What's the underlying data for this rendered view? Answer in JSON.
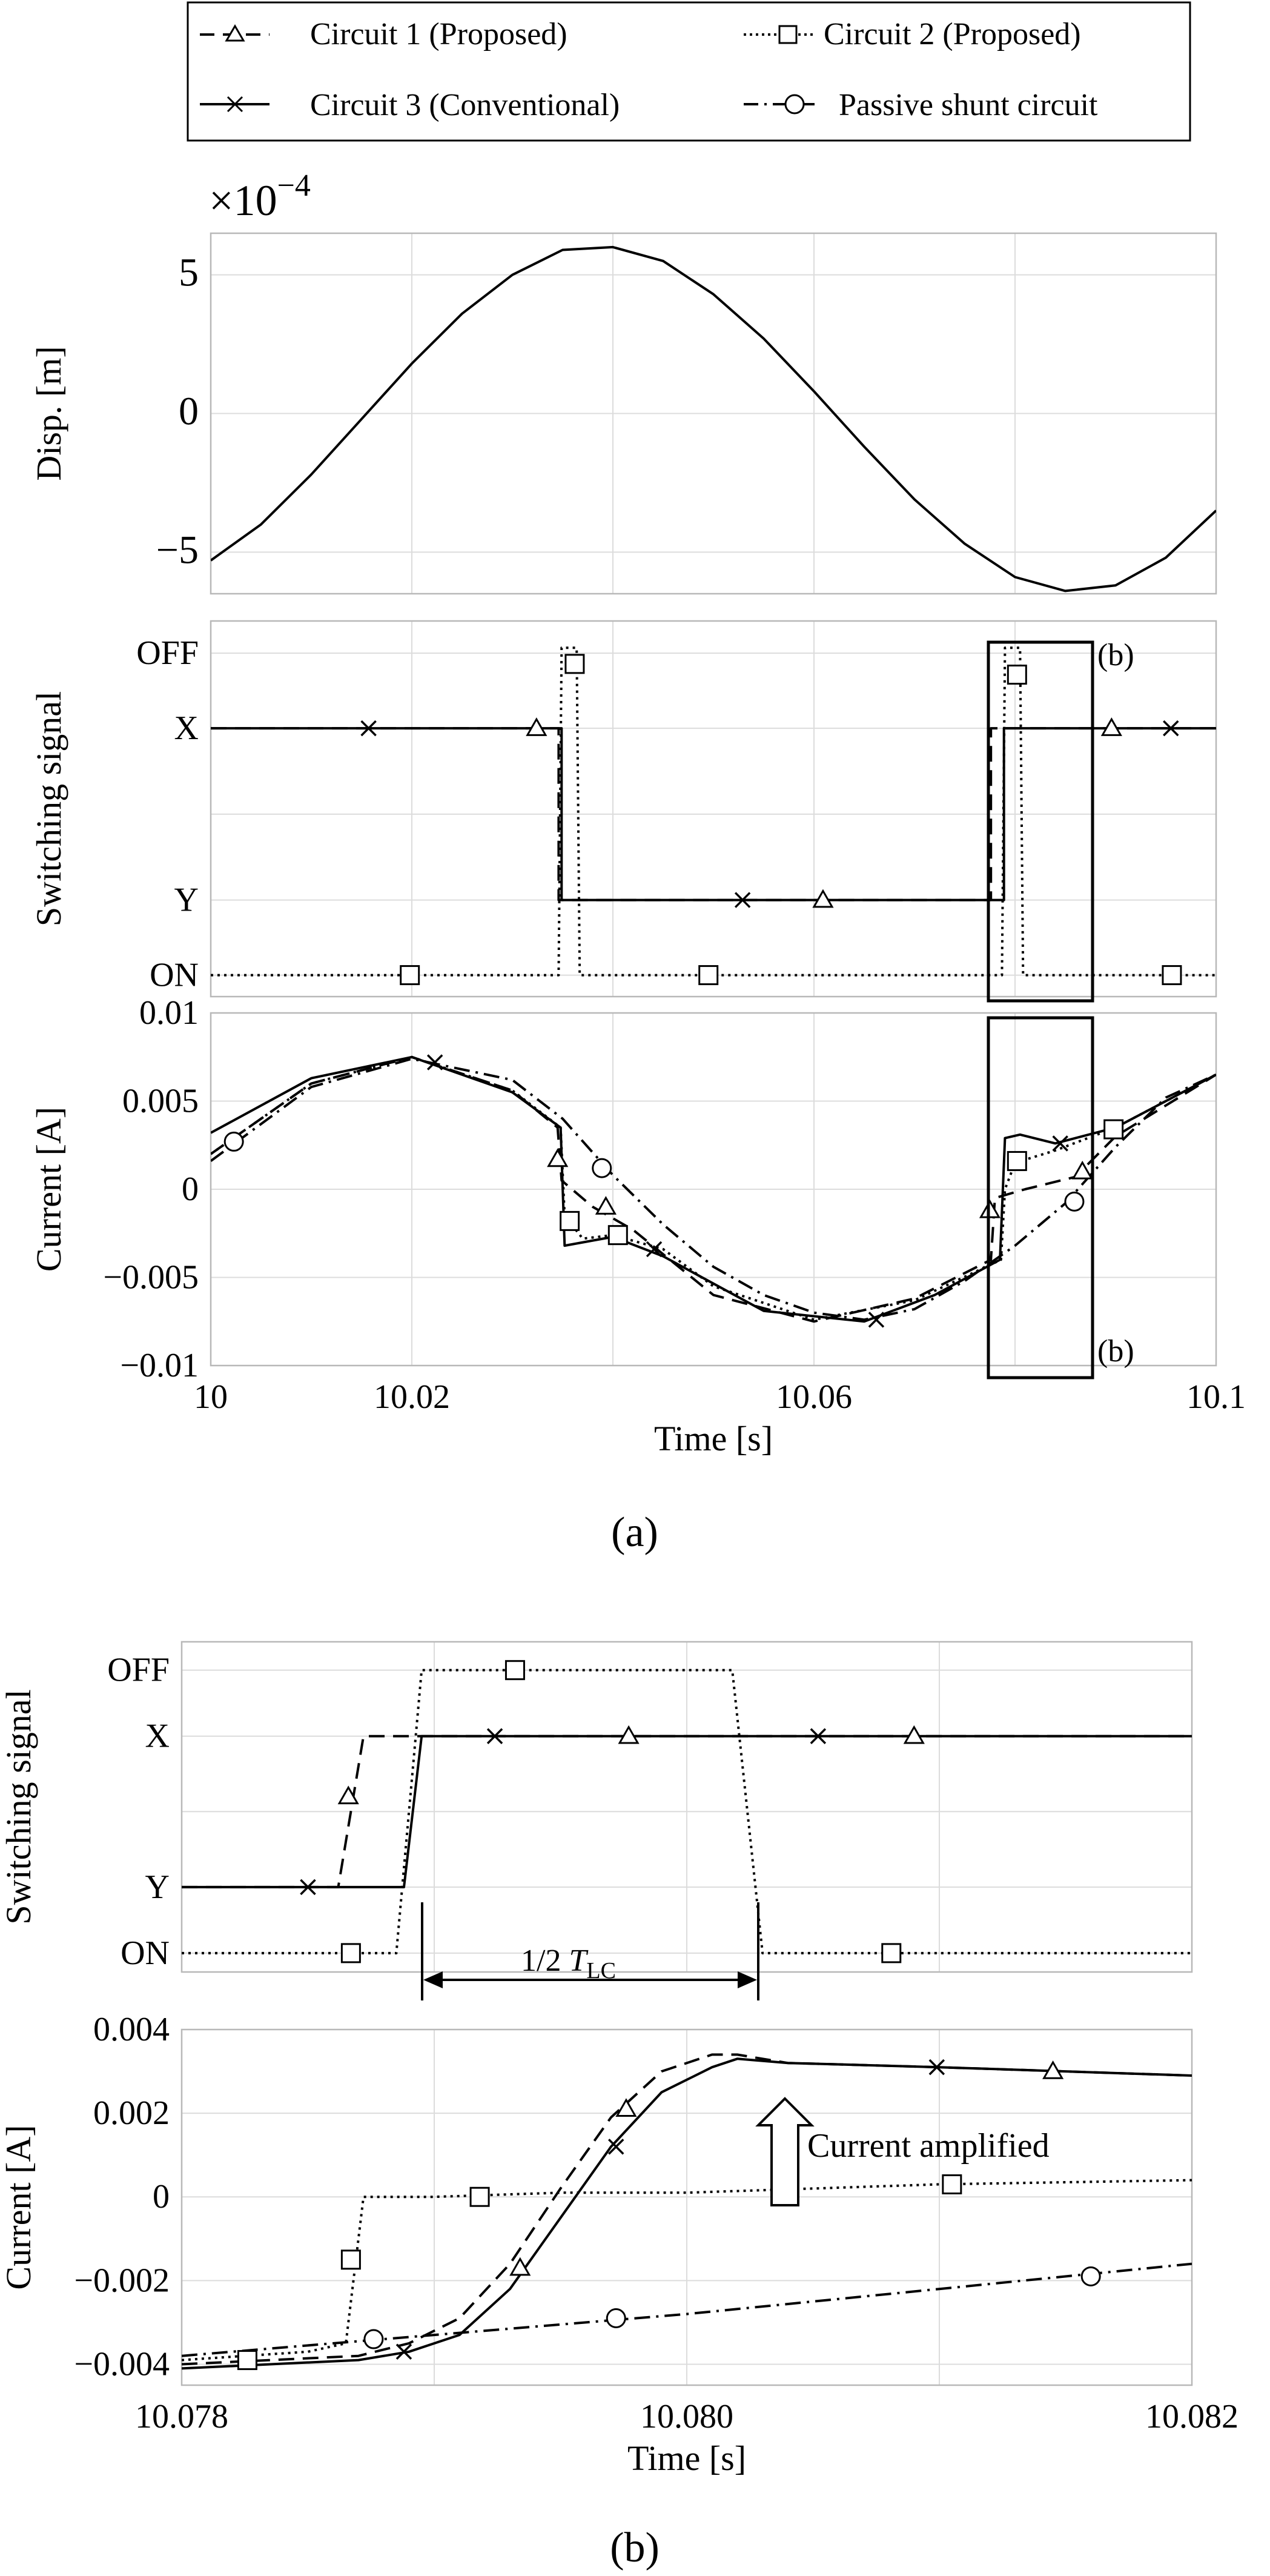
{
  "legend": {
    "entries": [
      {
        "label": "Circuit 1 (Proposed)",
        "line": "dashed",
        "marker": "triangle"
      },
      {
        "label": "Circuit 2 (Proposed)",
        "line": "dotted",
        "marker": "square"
      },
      {
        "label": "Circuit 3 (Conventional)",
        "line": "solid",
        "marker": "x"
      },
      {
        "label": "Passive shunt circuit",
        "line": "dashdot",
        "marker": "circle"
      }
    ]
  },
  "captions": {
    "a": "(a)",
    "b": "(b)"
  },
  "annotations": {
    "box_label": "(b)",
    "half_period_prefix": "1/2 ",
    "half_period_symbol": "T",
    "half_period_subscript": "LC",
    "current_amplified": "Current amplified"
  },
  "chart_data": [
    {
      "id": "a_disp",
      "type": "line",
      "ylabel": "Disp. [m]",
      "exponent_prefix": "×10",
      "exponent": "−4",
      "xlim": [
        10.0,
        10.1
      ],
      "ylim": [
        -6.5,
        6.5
      ],
      "yticks": [
        -5,
        0,
        5
      ],
      "ytick_labels": [
        "−5",
        "0",
        "5"
      ],
      "series": [
        {
          "style": "solid",
          "x": [
            10.0,
            10.005,
            10.01,
            10.015,
            10.02,
            10.025,
            10.03,
            10.035,
            10.04,
            10.045,
            10.05,
            10.055,
            10.06,
            10.065,
            10.07,
            10.075,
            10.08,
            10.085,
            10.09,
            10.095,
            10.1
          ],
          "y": [
            -5.3,
            -4.0,
            -2.2,
            -0.2,
            1.8,
            3.6,
            5.0,
            5.9,
            6.0,
            5.5,
            4.3,
            2.7,
            0.8,
            -1.2,
            -3.1,
            -4.7,
            -5.9,
            -6.4,
            -6.2,
            -5.2,
            -3.5
          ]
        }
      ]
    },
    {
      "id": "a_switch",
      "type": "line",
      "ylabel": "Switching signal",
      "xlim": [
        10.0,
        10.1
      ],
      "ylim": [
        -0.2,
        3.3
      ],
      "yticks": [
        0,
        0.7,
        1.5,
        2.3,
        3.0
      ],
      "ytick_labels": [
        "ON",
        "Y",
        "",
        "X",
        "OFF"
      ],
      "series": [
        {
          "name": "Circuit 1 (Proposed)",
          "style": "dashed",
          "x": [
            10.0,
            10.0346,
            10.0346,
            10.0776,
            10.0776,
            10.1
          ],
          "y": [
            2.3,
            2.3,
            0.7,
            0.7,
            2.3,
            2.3
          ],
          "markers": [
            [
              10.0324,
              2.3
            ],
            [
              10.0609,
              0.7
            ],
            [
              10.0896,
              2.3
            ]
          ]
        },
        {
          "name": "Circuit 2 (Proposed)",
          "style": "dotted",
          "x": [
            10.0,
            10.0346,
            10.0349,
            10.0364,
            10.0367,
            10.0787,
            10.079,
            10.0805,
            10.0808,
            10.1
          ],
          "y": [
            0,
            0,
            3.05,
            3.05,
            0,
            0,
            3.05,
            3.05,
            0,
            0
          ],
          "markers": [
            [
              10.0362,
              2.9
            ],
            [
              10.0198,
              0
            ],
            [
              10.0495,
              0
            ],
            [
              10.0802,
              2.8
            ],
            [
              10.0956,
              0
            ]
          ]
        },
        {
          "name": "Circuit 3 (Conventional)",
          "style": "solid",
          "x": [
            10.0,
            10.0349,
            10.0349,
            10.0789,
            10.0789,
            10.1
          ],
          "y": [
            2.3,
            2.3,
            0.7,
            0.7,
            2.3,
            2.3
          ],
          "markers": [
            [
              10.0157,
              2.3
            ],
            [
              10.0529,
              0.7
            ],
            [
              10.0955,
              2.3
            ]
          ]
        }
      ]
    },
    {
      "id": "a_current",
      "type": "line",
      "xlabel": "Time [s]",
      "ylabel": "Current [A]",
      "xlim": [
        10.0,
        10.1
      ],
      "ylim": [
        -0.01,
        0.01
      ],
      "xticks": [
        10.0,
        10.02,
        10.06,
        10.1
      ],
      "xtick_labels": [
        "10",
        "10.02",
        "10.06",
        "10.1"
      ],
      "yticks": [
        -0.01,
        -0.005,
        0,
        0.005,
        0.01
      ],
      "ytick_labels": [
        "−0.01",
        "−0.005",
        "0",
        "0.005",
        "0.01"
      ],
      "series": [
        {
          "name": "Circuit 3 (Conventional)",
          "style": "solid",
          "x": [
            10.0,
            10.01,
            10.02,
            10.03,
            10.0348,
            10.0352,
            10.04,
            10.045,
            10.055,
            10.065,
            10.072,
            10.0785,
            10.079,
            10.0805,
            10.084,
            10.09,
            10.1
          ],
          "y": [
            0.0032,
            0.0063,
            0.0075,
            0.0055,
            0.0035,
            -0.0032,
            -0.0027,
            -0.0038,
            -0.0069,
            -0.0075,
            -0.006,
            -0.004,
            0.0029,
            0.0031,
            0.0026,
            0.0035,
            0.0065
          ],
          "markers": [
            [
              10.0223,
              0.0072
            ],
            [
              10.0441,
              -0.0034
            ],
            [
              10.0662,
              -0.0074
            ],
            [
              10.0845,
              0.0026
            ]
          ]
        },
        {
          "name": "Circuit 1 (Proposed)",
          "style": "dashed",
          "x": [
            10.0,
            10.01,
            10.02,
            10.03,
            10.0345,
            10.0349,
            10.038,
            10.042,
            10.05,
            10.06,
            10.07,
            10.0776,
            10.078,
            10.081,
            10.086,
            10.09,
            10.1
          ],
          "y": [
            0.002,
            0.006,
            0.0075,
            0.0056,
            0.0035,
            0.0005,
            -0.001,
            -0.0023,
            -0.006,
            -0.0075,
            -0.0062,
            -0.004,
            -0.0005,
            0.0,
            0.0007,
            0.003,
            0.0065
          ],
          "markers": [
            [
              10.0345,
              0.0017
            ],
            [
              10.0393,
              -0.001
            ],
            [
              10.0775,
              -0.0012
            ],
            [
              10.0867,
              0.001
            ]
          ]
        },
        {
          "name": "Circuit 2 (Proposed)",
          "style": "dotted",
          "x": [
            10.0,
            10.01,
            10.02,
            10.03,
            10.0348,
            10.0352,
            10.037,
            10.04,
            10.045,
            10.05,
            10.06,
            10.07,
            10.0786,
            10.079,
            10.08,
            10.084,
            10.09,
            10.1
          ],
          "y": [
            0.002,
            0.006,
            0.0075,
            0.0056,
            0.0035,
            -0.0015,
            -0.0028,
            -0.0026,
            -0.0034,
            -0.0055,
            -0.0074,
            -0.0063,
            -0.004,
            0.0,
            0.0015,
            0.0022,
            0.0035,
            0.0065
          ],
          "markers": [
            [
              10.0357,
              -0.0018
            ],
            [
              10.0405,
              -0.0026
            ],
            [
              10.0802,
              0.0016
            ],
            [
              10.0898,
              0.0034
            ]
          ]
        },
        {
          "name": "Passive shunt circuit",
          "style": "dashdot",
          "x": [
            10.0,
            10.01,
            10.02,
            10.03,
            10.035,
            10.04,
            10.045,
            10.05,
            10.055,
            10.06,
            10.065,
            10.07,
            10.075,
            10.08,
            10.085,
            10.09,
            10.095,
            10.1
          ],
          "y": [
            0.0016,
            0.0058,
            0.0074,
            0.0062,
            0.004,
            0.0008,
            -0.002,
            -0.0044,
            -0.006,
            -0.007,
            -0.0074,
            -0.0068,
            -0.0052,
            -0.0032,
            -0.0008,
            0.0024,
            0.0052,
            0.0065
          ],
          "markers": [
            [
              10.0023,
              0.0027
            ],
            [
              10.0389,
              0.0012
            ],
            [
              10.0859,
              -0.0007
            ]
          ]
        }
      ]
    },
    {
      "id": "b_switch",
      "type": "line",
      "ylabel": "Switching signal",
      "xlim": [
        10.078,
        10.082
      ],
      "ylim": [
        -0.2,
        3.3
      ],
      "yticks": [
        0,
        0.7,
        1.5,
        2.3,
        3.0
      ],
      "ytick_labels": [
        "ON",
        "Y",
        "",
        "X",
        "OFF"
      ],
      "series": [
        {
          "name": "Circuit 1 (Proposed)",
          "style": "dashed",
          "x": [
            10.078,
            10.07862,
            10.07872,
            10.082
          ],
          "y": [
            0.7,
            0.7,
            2.3,
            2.3
          ],
          "markers": [
            [
              10.07866,
              1.66
            ],
            [
              10.07977,
              2.3
            ],
            [
              10.0809,
              2.3
            ]
          ]
        },
        {
          "name": "Circuit 2 (Proposed)",
          "style": "dotted",
          "x": [
            10.078,
            10.07885,
            10.07895,
            10.08018,
            10.0803,
            10.082
          ],
          "y": [
            0,
            0,
            3.0,
            3.0,
            0,
            0
          ],
          "markers": [
            [
              10.07932,
              3.0
            ],
            [
              10.07867,
              0
            ],
            [
              10.08081,
              0
            ]
          ]
        },
        {
          "name": "Circuit 3 (Conventional)",
          "style": "solid",
          "x": [
            10.078,
            10.07888,
            10.07895,
            10.082
          ],
          "y": [
            0.7,
            0.7,
            2.3,
            2.3
          ],
          "markers": [
            [
              10.0785,
              0.7
            ],
            [
              10.07924,
              2.3
            ],
            [
              10.08052,
              2.3
            ]
          ]
        }
      ]
    },
    {
      "id": "b_current",
      "type": "line",
      "xlabel": "Time [s]",
      "ylabel": "Current [A]",
      "xlim": [
        10.078,
        10.082
      ],
      "ylim": [
        -0.0045,
        0.004
      ],
      "xticks": [
        10.078,
        10.08,
        10.082
      ],
      "xtick_labels": [
        "10.078",
        "10.080",
        "10.082"
      ],
      "yticks": [
        -0.004,
        -0.002,
        0,
        0.002,
        0.004
      ],
      "ytick_labels": [
        "−0.004",
        "−0.002",
        "0",
        "0.002",
        "0.004"
      ],
      "series": [
        {
          "name": "Circuit 3 (Conventional)",
          "style": "solid",
          "x": [
            10.078,
            10.0787,
            10.0789,
            10.0791,
            10.0793,
            10.0795,
            10.0797,
            10.0799,
            10.0801,
            10.0802,
            10.0804,
            10.081,
            10.082
          ],
          "y": [
            -0.0041,
            -0.0039,
            -0.0037,
            -0.0033,
            -0.0022,
            -0.0005,
            0.0012,
            0.0025,
            0.0031,
            0.0033,
            0.0032,
            0.0031,
            0.0029
          ],
          "markers": [
            [
              10.07888,
              -0.0037
            ],
            [
              10.07972,
              0.0012
            ],
            [
              10.08099,
              0.0031
            ]
          ]
        },
        {
          "name": "Circuit 1 (Proposed)",
          "style": "dashed",
          "x": [
            10.078,
            10.0787,
            10.0789,
            10.0791,
            10.0793,
            10.0795,
            10.0797,
            10.0799,
            10.0801,
            10.0802,
            10.0804,
            10.081,
            10.082
          ],
          "y": [
            -0.004,
            -0.0038,
            -0.0035,
            -0.0029,
            -0.0016,
            0.0002,
            0.0019,
            0.003,
            0.0034,
            0.0034,
            0.0032,
            0.0031,
            0.0029
          ],
          "markers": [
            [
              10.07934,
              -0.0017
            ],
            [
              10.07976,
              0.0021
            ],
            [
              10.08145,
              0.003
            ]
          ]
        },
        {
          "name": "Circuit 2 (Proposed)",
          "style": "dotted",
          "x": [
            10.078,
            10.0785,
            10.07865,
            10.07872,
            10.079,
            10.0795,
            10.08,
            10.081,
            10.082
          ],
          "y": [
            -0.0039,
            -0.0037,
            -0.0035,
            0.0,
            0.0,
            0.0001,
            0.0001,
            0.0003,
            0.0004
          ],
          "markers": [
            [
              10.07826,
              -0.0039
            ],
            [
              10.07867,
              -0.0015
            ],
            [
              10.07918,
              0.0
            ],
            [
              10.08105,
              0.0003
            ]
          ]
        },
        {
          "name": "Passive shunt circuit",
          "style": "dashdot",
          "x": [
            10.078,
            10.079,
            10.08,
            10.081,
            10.082
          ],
          "y": [
            -0.0038,
            -0.0033,
            -0.0028,
            -0.0022,
            -0.0016
          ],
          "markers": [
            [
              10.07876,
              -0.0034
            ],
            [
              10.07972,
              -0.0029
            ],
            [
              10.0816,
              -0.0019
            ]
          ]
        }
      ]
    }
  ]
}
